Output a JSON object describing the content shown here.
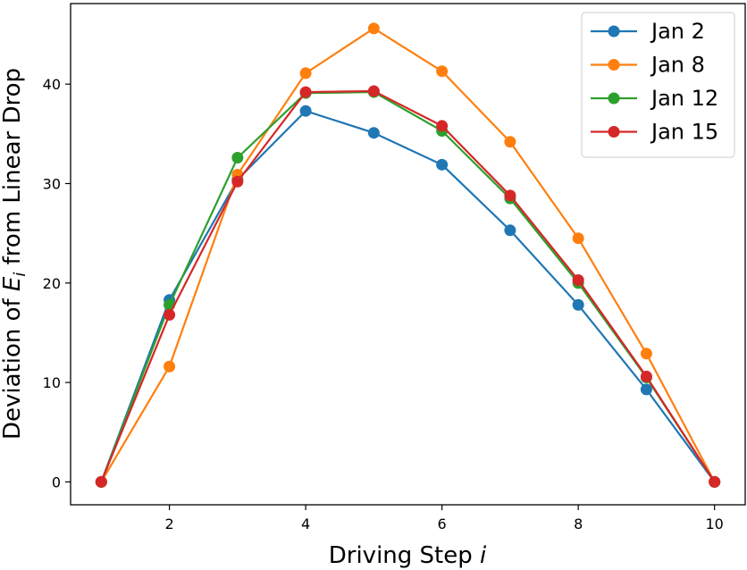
{
  "chart_data": {
    "type": "line",
    "title": "",
    "xlabel": "Driving Step",
    "xlabel_var": "i",
    "ylabel_prefix": "Deviation of ",
    "ylabel_var": "E",
    "ylabel_sub": "i",
    "ylabel_suffix": " from Linear Drop",
    "x": [
      1,
      2,
      3,
      4,
      5,
      6,
      7,
      8,
      9,
      10
    ],
    "xlim": [
      0.55,
      10.45
    ],
    "ylim": [
      -2.3,
      48.1
    ],
    "xticks": [
      2,
      4,
      6,
      8,
      10
    ],
    "yticks": [
      0,
      10,
      20,
      30,
      40
    ],
    "grid": false,
    "legend_position": "top-right",
    "series": [
      {
        "name": "Jan 2",
        "color": "#1f77b4",
        "values": [
          0,
          18.3,
          30.4,
          37.3,
          35.1,
          31.9,
          25.3,
          17.8,
          9.3,
          0
        ]
      },
      {
        "name": "Jan 8",
        "color": "#ff7f0e",
        "values": [
          0,
          11.6,
          30.9,
          41.1,
          45.6,
          41.3,
          34.2,
          24.5,
          12.9,
          0
        ]
      },
      {
        "name": "Jan 12",
        "color": "#2ca02c",
        "values": [
          0,
          17.8,
          32.6,
          39.1,
          39.2,
          35.3,
          28.5,
          20.0,
          10.5,
          0
        ]
      },
      {
        "name": "Jan 15",
        "color": "#d62728",
        "values": [
          0,
          16.8,
          30.2,
          39.2,
          39.3,
          35.8,
          28.8,
          20.3,
          10.6,
          0
        ]
      }
    ]
  }
}
